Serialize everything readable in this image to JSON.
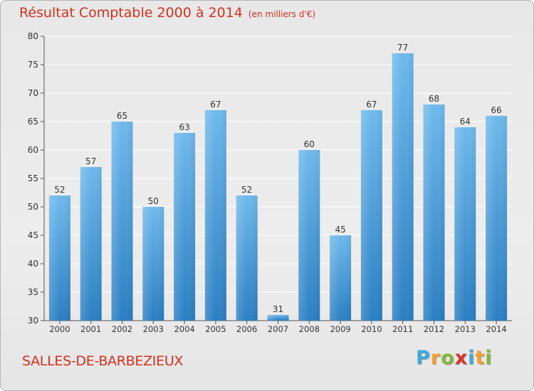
{
  "title": "Résultat Comptable 2000 à 2014",
  "subtitle": "(en milliers d'€)",
  "city": "SALLES-DE-BARBEZIEUX",
  "logo": {
    "letters": [
      "P",
      "r",
      "o",
      "x",
      "i",
      "t",
      "i"
    ],
    "colors": [
      "#3fa9dc",
      "#f2a12a",
      "#84b83c",
      "#d8342a",
      "#3fa9dc",
      "#f2a12a",
      "#84b83c"
    ]
  },
  "colors": {
    "bar_top": "#6fb9ec",
    "bar_bottom": "#2b7fc2",
    "title": "#d4301b",
    "grid": "#ffffff"
  },
  "chart_data": {
    "type": "bar",
    "title": "Résultat Comptable 2000 à 2014 (en milliers d'€)",
    "xlabel": "",
    "ylabel": "",
    "ylim": [
      30,
      80
    ],
    "yticks": [
      30,
      35,
      40,
      45,
      50,
      55,
      60,
      65,
      70,
      75,
      80
    ],
    "categories": [
      "2000",
      "2001",
      "2002",
      "2003",
      "2004",
      "2005",
      "2006",
      "2007",
      "2008",
      "2009",
      "2010",
      "2011",
      "2012",
      "2013",
      "2014"
    ],
    "values": [
      52,
      57,
      65,
      50,
      63,
      67,
      52,
      31,
      60,
      45,
      67,
      77,
      68,
      64,
      66
    ],
    "grid": true
  }
}
